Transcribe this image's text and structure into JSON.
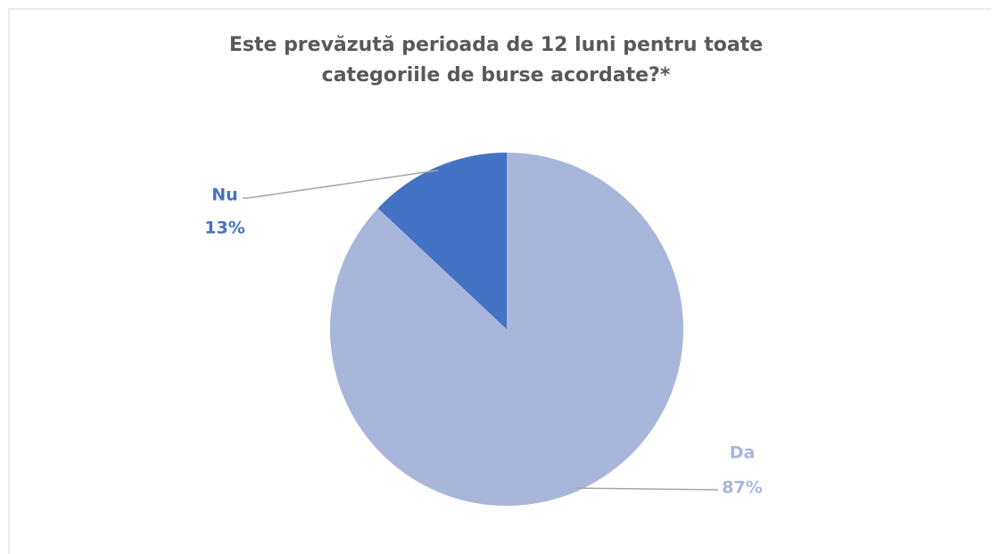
{
  "chart_data": {
    "type": "pie",
    "title": "Este prevăzută perioada de 12 luni pentru toate categoriile de burse acordate?*",
    "categories": [
      "Da",
      "Nu"
    ],
    "values": [
      87,
      13
    ],
    "value_labels": [
      "87%",
      "13%"
    ],
    "colors": [
      "#a9b6dc",
      "#4472c4"
    ]
  }
}
